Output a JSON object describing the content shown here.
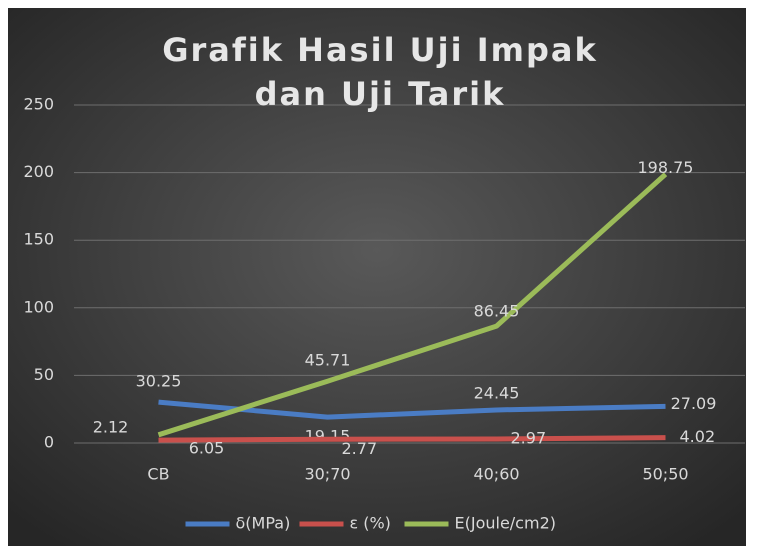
{
  "chart_data": {
    "type": "line",
    "title": "Grafik Hasil Uji Impak dan Uji Tarik",
    "categories": [
      "CB",
      "30;70",
      "40;60",
      "50;50"
    ],
    "series": [
      {
        "name": "δ(MPa)",
        "color": "#4a7cc4",
        "values": [
          30.25,
          19.15,
          24.45,
          27.09
        ]
      },
      {
        "name": "ε (%)",
        "color": "#c9504c",
        "values": [
          2.12,
          2.77,
          2.97,
          4.02
        ]
      },
      {
        "name": "E(Joule/cm2)",
        "color": "#9bbb59",
        "values": [
          6.05,
          45.71,
          86.45,
          198.75
        ]
      }
    ],
    "ylim": [
      0,
      250
    ],
    "yticks": [
      0,
      50,
      100,
      150,
      200,
      250
    ],
    "grid": true,
    "legend": "bottom"
  }
}
